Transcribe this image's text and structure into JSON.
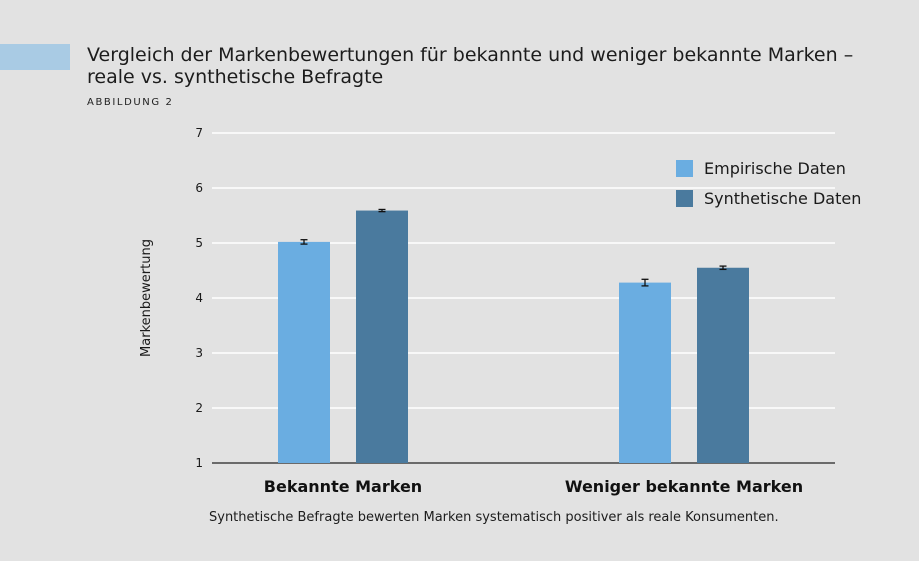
{
  "header": {
    "title_line1": "Vergleich der Markenbewertungen für bekannte und weniger bekannte Marken –",
    "title_line2": "reale vs. synthetische Befragte",
    "figure_label": "ABBILDUNG 2"
  },
  "footnote": "Synthetische Befragte bewerten Marken systematisch positiver als reale Konsumenten.",
  "colors": {
    "empirical": "#6aade1",
    "synthetic": "#4a7a9e",
    "grid": "#ffffff",
    "axis": "#222222",
    "accent": "#a9cbe4"
  },
  "chart_data": {
    "type": "bar",
    "title": "Vergleich der Markenbewertungen für bekannte und weniger bekannte Marken – reale vs. synthetische Befragte",
    "xlabel": "",
    "ylabel": "Markenbewertung",
    "ylim": [
      1,
      7
    ],
    "yticks": [
      1,
      2,
      3,
      4,
      5,
      6,
      7
    ],
    "grid": true,
    "legend_position": "top-right",
    "categories": [
      "Bekannte Marken",
      "Weniger bekannte Marken"
    ],
    "series": [
      {
        "name": "Empirische Daten",
        "values": [
          5.02,
          4.28
        ],
        "errors": [
          0.04,
          0.06
        ],
        "color": "#6aade1"
      },
      {
        "name": "Synthetische Daten",
        "values": [
          5.59,
          4.55
        ],
        "errors": [
          0.02,
          0.03
        ],
        "color": "#4a7a9e"
      }
    ]
  }
}
